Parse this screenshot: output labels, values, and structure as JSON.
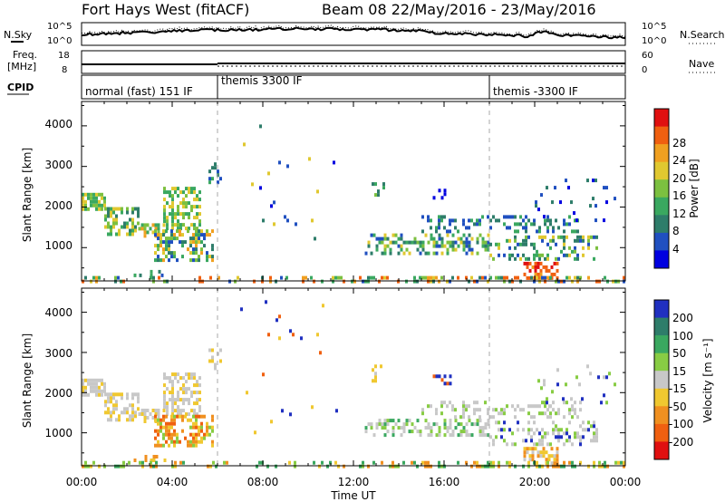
{
  "header": {
    "title": "Fort Hays West (fitACF)",
    "beam": "Beam 08 22/May/2016 - 23/May/2016"
  },
  "noise_panel": {
    "left_label": "N.Sky",
    "left_ticks": [
      "10^5",
      "10^0"
    ],
    "right_label": "N.Search",
    "right_ticks": [
      "10^5",
      "10^0"
    ]
  },
  "freq_panel": {
    "left_label_1": "Freq.",
    "left_label_2": "[MHz]",
    "left_ticks": [
      "18",
      "8"
    ],
    "right_label": "Nave",
    "right_ticks": [
      "60",
      "0"
    ]
  },
  "cpid_panel": {
    "label": "CPID",
    "segments": [
      {
        "start": 0,
        "end": 6,
        "text": "normal (fast) 151 IF"
      },
      {
        "start": 6,
        "end": 18,
        "text": "themis 3300 IF"
      },
      {
        "start": 18,
        "end": 24,
        "text": "themis -3300 IF"
      }
    ]
  },
  "colors": {
    "power_scale": [
      "#0000e0",
      "#2050c0",
      "#2e7d6a",
      "#3aa860",
      "#7cc040",
      "#e0c830",
      "#f0a020",
      "#f06010",
      "#e01010"
    ],
    "velocity_scale": [
      "#2030c0",
      "#2e7d6a",
      "#3aa860",
      "#88cc44",
      "#c8c8c8",
      "#f0c830",
      "#f09020",
      "#f06010",
      "#e01010"
    ]
  },
  "chart_data": [
    {
      "type": "heatmap",
      "name": "power",
      "xlabel": "",
      "ylabel": "Slant Range [km]",
      "y_ticks": [
        "1000",
        "2000",
        "3000",
        "4000"
      ],
      "colorbar_label": "Power [dB]",
      "colorbar_ticks": [
        "4",
        "8",
        "12",
        "16",
        "20",
        "24",
        "28"
      ],
      "xlim": [
        0,
        24
      ],
      "ylim": [
        180,
        4600
      ],
      "scatter_regions": [
        {
          "t0": 0.0,
          "t1": 1.0,
          "r0": 1950,
          "r1": 2350,
          "density": 0.75,
          "c": [
            3,
            4,
            5
          ]
        },
        {
          "t0": 1.0,
          "t1": 2.5,
          "r0": 1350,
          "r1": 2000,
          "density": 0.5,
          "c": [
            2,
            3,
            4,
            5
          ]
        },
        {
          "t0": 2.5,
          "t1": 3.6,
          "r0": 1250,
          "r1": 1600,
          "density": 0.55,
          "c": [
            3,
            4,
            5,
            6
          ]
        },
        {
          "t0": 3.6,
          "t1": 5.2,
          "r0": 1500,
          "r1": 2500,
          "density": 0.45,
          "c": [
            3,
            4,
            5
          ]
        },
        {
          "t0": 3.2,
          "t1": 5.8,
          "r0": 700,
          "r1": 1450,
          "density": 0.55,
          "c": [
            1,
            2,
            3,
            4,
            5,
            6
          ]
        },
        {
          "t0": 5.6,
          "t1": 6.1,
          "r0": 2600,
          "r1": 3100,
          "density": 0.3,
          "c": [
            1,
            2,
            3
          ]
        },
        {
          "t0": 2.3,
          "t1": 3.7,
          "r0": 300,
          "r1": 450,
          "density": 0.4,
          "c": [
            1,
            2,
            3
          ]
        },
        {
          "t0": 12.5,
          "t1": 18.0,
          "r0": 900,
          "r1": 1350,
          "density": 0.42,
          "c": [
            1,
            2,
            3,
            4,
            5
          ]
        },
        {
          "t0": 15.0,
          "t1": 22.0,
          "r0": 1400,
          "r1": 1800,
          "density": 0.25,
          "c": [
            1,
            2,
            3
          ]
        },
        {
          "t0": 18.0,
          "t1": 22.8,
          "r0": 700,
          "r1": 1300,
          "density": 0.3,
          "c": [
            1,
            2,
            3,
            4,
            5
          ]
        },
        {
          "t0": 19.5,
          "t1": 21.0,
          "r0": 250,
          "r1": 650,
          "density": 0.6,
          "c": [
            6,
            7,
            8
          ]
        },
        {
          "t0": 0.0,
          "t1": 24.0,
          "r0": 180,
          "r1": 300,
          "density": 0.35,
          "c": [
            1,
            2,
            3,
            4,
            5,
            6,
            7
          ]
        },
        {
          "t0": 12.8,
          "t1": 13.3,
          "r0": 2300,
          "r1": 2700,
          "density": 0.3,
          "c": [
            2,
            3,
            4
          ]
        },
        {
          "t0": 15.5,
          "t1": 16.3,
          "r0": 2200,
          "r1": 2450,
          "density": 0.35,
          "c": [
            0,
            1
          ]
        },
        {
          "t0": 20.0,
          "t1": 23.5,
          "r0": 1700,
          "r1": 2700,
          "density": 0.06,
          "c": [
            0,
            1,
            2
          ]
        },
        {
          "t0": 7.0,
          "t1": 11.5,
          "r0": 1000,
          "r1": 4300,
          "density": 0.01,
          "c": [
            0,
            1,
            2,
            5
          ]
        }
      ]
    },
    {
      "type": "heatmap",
      "name": "velocity",
      "xlabel": "Time UT",
      "ylabel": "Slant Range [km]",
      "x_ticks": [
        "00:00",
        "04:00",
        "08:00",
        "12:00",
        "16:00",
        "20:00",
        "00:00"
      ],
      "y_ticks": [
        "1000",
        "2000",
        "3000",
        "4000"
      ],
      "colorbar_label": "Velocity [m s⁻¹]",
      "colorbar_ticks": [
        "200",
        "100",
        "50",
        "15",
        "-15",
        "-50",
        "-100",
        "-200"
      ],
      "xlim": [
        0,
        24
      ],
      "ylim": [
        180,
        4600
      ],
      "scatter_regions": [
        {
          "t0": 0.0,
          "t1": 1.0,
          "r0": 1950,
          "r1": 2350,
          "density": 0.75,
          "c": [
            4,
            4,
            4,
            5
          ]
        },
        {
          "t0": 1.0,
          "t1": 2.5,
          "r0": 1350,
          "r1": 2000,
          "density": 0.5,
          "c": [
            4,
            4,
            5
          ]
        },
        {
          "t0": 2.5,
          "t1": 3.6,
          "r0": 1250,
          "r1": 1600,
          "density": 0.55,
          "c": [
            4,
            4,
            5
          ]
        },
        {
          "t0": 3.6,
          "t1": 5.2,
          "r0": 1500,
          "r1": 2500,
          "density": 0.45,
          "c": [
            4,
            4,
            5
          ]
        },
        {
          "t0": 3.2,
          "t1": 5.8,
          "r0": 700,
          "r1": 1450,
          "density": 0.6,
          "c": [
            5,
            6,
            7,
            3
          ]
        },
        {
          "t0": 5.6,
          "t1": 6.1,
          "r0": 2600,
          "r1": 3100,
          "density": 0.3,
          "c": [
            4,
            5
          ]
        },
        {
          "t0": 2.3,
          "t1": 3.7,
          "r0": 300,
          "r1": 450,
          "density": 0.45,
          "c": [
            5,
            6
          ]
        },
        {
          "t0": 12.5,
          "t1": 18.0,
          "r0": 900,
          "r1": 1350,
          "density": 0.42,
          "c": [
            4,
            4,
            3,
            2
          ]
        },
        {
          "t0": 15.0,
          "t1": 22.0,
          "r0": 1400,
          "r1": 1800,
          "density": 0.25,
          "c": [
            4,
            4,
            3
          ]
        },
        {
          "t0": 18.0,
          "t1": 22.8,
          "r0": 700,
          "r1": 1300,
          "density": 0.3,
          "c": [
            4,
            4,
            3,
            0
          ]
        },
        {
          "t0": 19.5,
          "t1": 21.0,
          "r0": 250,
          "r1": 650,
          "density": 0.6,
          "c": [
            4,
            5,
            6
          ]
        },
        {
          "t0": 0.0,
          "t1": 24.0,
          "r0": 180,
          "r1": 300,
          "density": 0.35,
          "c": [
            5,
            6,
            3,
            2
          ]
        },
        {
          "t0": 12.8,
          "t1": 13.3,
          "r0": 2300,
          "r1": 2700,
          "density": 0.3,
          "c": [
            4,
            5
          ]
        },
        {
          "t0": 15.5,
          "t1": 16.3,
          "r0": 2200,
          "r1": 2450,
          "density": 0.35,
          "c": [
            0,
            7
          ]
        },
        {
          "t0": 20.0,
          "t1": 23.5,
          "r0": 1700,
          "r1": 2700,
          "density": 0.06,
          "c": [
            4,
            3,
            0
          ]
        },
        {
          "t0": 7.0,
          "t1": 11.5,
          "r0": 1000,
          "r1": 4300,
          "density": 0.01,
          "c": [
            0,
            7,
            5
          ]
        }
      ]
    }
  ]
}
